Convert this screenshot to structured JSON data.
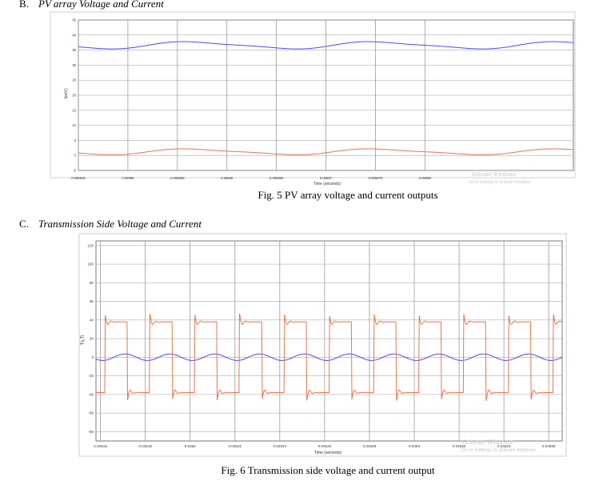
{
  "section_b": {
    "letter": "B.",
    "title": "PV array Voltage and Current"
  },
  "fig5": {
    "caption": "Fig. 5 PV array voltage and current outputs",
    "watermark_1": "Activate Windows",
    "watermark_2": "Go to Settings to activate Windows."
  },
  "section_c": {
    "letter": "C.",
    "title": "Transmission Side Voltage and Current"
  },
  "fig6": {
    "caption": "Fig. 6 Transmission side voltage and current output",
    "watermark_1": "Activate Windows",
    "watermark_2": "Go to Settings to activate Windows."
  },
  "colors": {
    "voltage": "#4b4bf0",
    "current": "#e8764a",
    "grid": "#9a9a9a",
    "frame": "#7a7a7a"
  },
  "chart_data": [
    {
      "type": "line",
      "ylabel": "Ipv(V)",
      "xlabel": "Time (seconds)",
      "ylim": [
        -5,
        45
      ],
      "xlim": [
        0.055845,
        0.055895
      ],
      "yticks": [
        "45",
        "40",
        "35",
        "30",
        "25",
        "20",
        "15",
        "10",
        "5",
        "0",
        "-5"
      ],
      "xticks": [
        "0.055845",
        "0.05585",
        "0.055855",
        "0.05586",
        "0.055865",
        "0.05587",
        "0.055875",
        "0.05588"
      ],
      "grid": true,
      "series": [
        {
          "color": "#4b4bf0",
          "kind": "ripple",
          "offset": 36.6,
          "amplitude": 1.1,
          "period": 1.87e-05,
          "phase_x": 0.055852,
          "values": [
            36.2,
            35.5,
            37.7,
            35.6,
            37.7,
            35.5,
            37.7,
            36.8
          ]
        },
        {
          "color": "#e8764a",
          "kind": "ripple",
          "offset": 1.2,
          "amplitude": 0.9,
          "period": 1.87e-05,
          "phase_x": 0.055852,
          "values": [
            0.5,
            0.4,
            2.1,
            0.3,
            2.1,
            0.4,
            2.1,
            0.4
          ]
        }
      ]
    },
    {
      "type": "line",
      "ylabel": "Tv,Ti",
      "xlabel": "Time (seconds)",
      "ylim": [
        -90,
        125
      ],
      "xlim": [
        0.045158,
        0.045366
      ],
      "yticks": [
        "120",
        "100",
        "80",
        "60",
        "40",
        "20",
        "0",
        "-20",
        "-40",
        "-60",
        "-80"
      ],
      "xticks": [
        "0.04516",
        "0.04518",
        "0.0452",
        "0.04522",
        "0.04524",
        "0.04526",
        "0.04528",
        "0.0453",
        "0.04532",
        "0.04534",
        "0.04536"
      ],
      "grid": true,
      "series": [
        {
          "color": "#4b4bf0",
          "kind": "sine",
          "amplitude": 3.5,
          "period": 2e-05,
          "phase_x": 0.045166,
          "values": [
            3.5,
            -3.5,
            3.5,
            -3.5,
            3.5,
            -3.5,
            3.5,
            -3.5,
            3.5,
            -3.5
          ]
        },
        {
          "color": "#e8764a",
          "kind": "square-ringing",
          "level": 38,
          "peak": 48,
          "period": 2e-05,
          "phase_x": 0.045162,
          "values": [
            38,
            -38,
            38,
            -38,
            38,
            -38,
            38,
            -38,
            38,
            -38
          ]
        }
      ]
    }
  ]
}
